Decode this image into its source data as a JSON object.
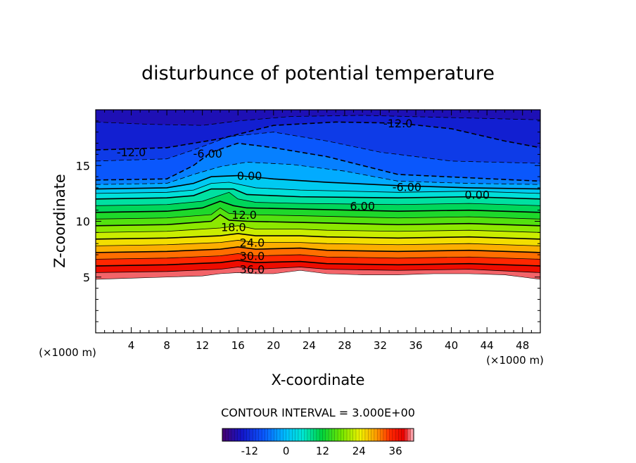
{
  "chart_data": {
    "type": "contour",
    "title": "disturbunce of potential temperature",
    "xlabel": "X-coordinate",
    "ylabel": "Z-coordinate",
    "x_unit": "(×1000 m)",
    "y_unit": "(×1000 m)",
    "xlim": [
      0,
      50
    ],
    "ylim": [
      0,
      20
    ],
    "x_ticks": [
      4,
      8,
      12,
      16,
      20,
      24,
      28,
      32,
      36,
      40,
      44,
      48
    ],
    "y_ticks": [
      5,
      10,
      15
    ],
    "contour_interval_label": "CONTOUR INTERVAL = 3.000E+00",
    "colorbar": {
      "range": [
        -21,
        42
      ],
      "ticks": [
        -12,
        0,
        12,
        24,
        36
      ]
    },
    "contour_labels": [
      {
        "text": "-12.0",
        "x": 4.0,
        "y": 16.2
      },
      {
        "text": "-12.0",
        "x": 34.0,
        "y": 18.8
      },
      {
        "text": "-6.00",
        "x": 12.6,
        "y": 16.1
      },
      {
        "text": "0.00",
        "x": 17.3,
        "y": 14.1
      },
      {
        "text": "-6.00",
        "x": 35.0,
        "y": 13.1
      },
      {
        "text": "0.00",
        "x": 42.9,
        "y": 12.4
      },
      {
        "text": "6.00",
        "x": 30.0,
        "y": 11.4
      },
      {
        "text": "12.0",
        "x": 16.7,
        "y": 10.6
      },
      {
        "text": "18.0",
        "x": 15.5,
        "y": 9.5
      },
      {
        "text": "24.0",
        "x": 17.6,
        "y": 8.1
      },
      {
        "text": "30.0",
        "x": 17.6,
        "y": 6.9
      },
      {
        "text": "36.0",
        "x": 17.6,
        "y": 5.7
      }
    ],
    "terrain_top": [
      [
        0,
        4.8
      ],
      [
        4,
        4.9
      ],
      [
        8,
        5.0
      ],
      [
        12,
        5.1
      ],
      [
        14,
        5.3
      ],
      [
        16,
        5.4
      ],
      [
        18,
        5.3
      ],
      [
        20,
        5.3
      ],
      [
        23,
        5.6
      ],
      [
        26,
        5.3
      ],
      [
        30,
        5.2
      ],
      [
        34,
        5.2
      ],
      [
        38,
        5.3
      ],
      [
        42,
        5.3
      ],
      [
        46,
        5.2
      ],
      [
        48,
        5.0
      ],
      [
        50,
        4.8
      ]
    ],
    "contours": [
      {
        "value": 39,
        "points": [
          [
            0,
            5.4
          ],
          [
            8,
            5.5
          ],
          [
            14,
            5.7
          ],
          [
            16,
            5.9
          ],
          [
            18,
            5.7
          ],
          [
            23,
            5.9
          ],
          [
            26,
            5.7
          ],
          [
            34,
            5.6
          ],
          [
            42,
            5.7
          ],
          [
            50,
            5.4
          ]
        ]
      },
      {
        "value": 36,
        "points": [
          [
            0,
            6.0
          ],
          [
            8,
            6.1
          ],
          [
            14,
            6.3
          ],
          [
            16,
            6.5
          ],
          [
            18,
            6.3
          ],
          [
            23,
            6.4
          ],
          [
            26,
            6.2
          ],
          [
            34,
            6.1
          ],
          [
            42,
            6.2
          ],
          [
            50,
            6.0
          ]
        ]
      },
      {
        "value": 33,
        "points": [
          [
            0,
            6.6
          ],
          [
            8,
            6.7
          ],
          [
            14,
            6.9
          ],
          [
            16,
            7.1
          ],
          [
            18,
            6.9
          ],
          [
            23,
            7.0
          ],
          [
            26,
            6.8
          ],
          [
            34,
            6.7
          ],
          [
            42,
            6.8
          ],
          [
            50,
            6.6
          ]
        ]
      },
      {
        "value": 30,
        "points": [
          [
            0,
            7.2
          ],
          [
            8,
            7.3
          ],
          [
            14,
            7.5
          ],
          [
            16,
            7.7
          ],
          [
            18,
            7.5
          ],
          [
            23,
            7.6
          ],
          [
            26,
            7.4
          ],
          [
            34,
            7.3
          ],
          [
            42,
            7.4
          ],
          [
            50,
            7.2
          ]
        ]
      },
      {
        "value": 27,
        "points": [
          [
            0,
            7.8
          ],
          [
            8,
            7.9
          ],
          [
            14,
            8.1
          ],
          [
            16,
            8.3
          ],
          [
            18,
            8.1
          ],
          [
            23,
            8.1
          ],
          [
            26,
            8.0
          ],
          [
            34,
            7.9
          ],
          [
            42,
            8.0
          ],
          [
            50,
            7.8
          ]
        ]
      },
      {
        "value": 24,
        "points": [
          [
            0,
            8.4
          ],
          [
            8,
            8.5
          ],
          [
            14,
            8.7
          ],
          [
            16,
            8.9
          ],
          [
            18,
            8.7
          ],
          [
            23,
            8.7
          ],
          [
            26,
            8.6
          ],
          [
            34,
            8.5
          ],
          [
            42,
            8.6
          ],
          [
            50,
            8.4
          ]
        ]
      },
      {
        "value": 21,
        "points": [
          [
            0,
            9.0
          ],
          [
            8,
            9.1
          ],
          [
            14,
            9.4
          ],
          [
            16,
            9.6
          ],
          [
            18,
            9.3
          ],
          [
            23,
            9.3
          ],
          [
            26,
            9.2
          ],
          [
            34,
            9.1
          ],
          [
            42,
            9.2
          ],
          [
            50,
            9.0
          ]
        ]
      },
      {
        "value": 18,
        "points": [
          [
            0,
            9.6
          ],
          [
            8,
            9.7
          ],
          [
            13,
            10.0
          ],
          [
            14,
            10.6
          ],
          [
            15,
            10.1
          ],
          [
            17,
            10.0
          ],
          [
            23,
            9.9
          ],
          [
            34,
            9.7
          ],
          [
            42,
            9.8
          ],
          [
            50,
            9.6
          ]
        ]
      },
      {
        "value": 15,
        "points": [
          [
            0,
            10.2
          ],
          [
            8,
            10.3
          ],
          [
            13,
            10.6
          ],
          [
            14,
            11.2
          ],
          [
            15,
            10.7
          ],
          [
            17,
            10.6
          ],
          [
            23,
            10.5
          ],
          [
            34,
            10.3
          ],
          [
            42,
            10.4
          ],
          [
            50,
            10.2
          ]
        ]
      },
      {
        "value": 12,
        "points": [
          [
            0,
            10.8
          ],
          [
            8,
            10.9
          ],
          [
            12,
            11.2
          ],
          [
            14,
            11.8
          ],
          [
            15.5,
            11.4
          ],
          [
            17,
            11.2
          ],
          [
            23,
            11.1
          ],
          [
            34,
            10.9
          ],
          [
            42,
            11.0
          ],
          [
            50,
            10.8
          ]
        ]
      },
      {
        "value": 9,
        "points": [
          [
            0,
            11.4
          ],
          [
            8,
            11.5
          ],
          [
            12,
            11.8
          ],
          [
            15,
            12.6
          ],
          [
            16,
            12.0
          ],
          [
            18,
            11.7
          ],
          [
            23,
            11.6
          ],
          [
            34,
            11.5
          ],
          [
            42,
            11.6
          ],
          [
            50,
            11.4
          ]
        ]
      },
      {
        "value": 6,
        "points": [
          [
            0,
            12.0
          ],
          [
            8,
            12.1
          ],
          [
            11,
            12.3
          ],
          [
            13,
            12.9
          ],
          [
            15.5,
            12.9
          ],
          [
            17,
            12.4
          ],
          [
            23,
            12.2
          ],
          [
            34,
            12.1
          ],
          [
            42,
            12.2
          ],
          [
            50,
            12.0
          ]
        ]
      },
      {
        "value": 3,
        "points": [
          [
            0,
            12.5
          ],
          [
            8,
            12.6
          ],
          [
            11,
            12.8
          ],
          [
            13,
            13.4
          ],
          [
            15,
            13.5
          ],
          [
            18,
            13.0
          ],
          [
            23,
            12.8
          ],
          [
            34,
            12.6
          ],
          [
            42,
            12.7
          ],
          [
            50,
            12.5
          ]
        ]
      },
      {
        "value": 0,
        "points": [
          [
            0,
            12.9
          ],
          [
            8,
            13.0
          ],
          [
            11,
            13.4
          ],
          [
            13,
            14.0
          ],
          [
            16,
            14.1
          ],
          [
            20,
            13.8
          ],
          [
            26,
            13.5
          ],
          [
            34,
            13.2
          ],
          [
            42,
            13.0
          ],
          [
            50,
            12.9
          ]
        ]
      },
      {
        "value": -3,
        "points": [
          [
            0,
            13.3
          ],
          [
            8,
            13.4
          ],
          [
            11,
            14.2
          ],
          [
            14,
            14.9
          ],
          [
            17,
            15.3
          ],
          [
            22,
            15.1
          ],
          [
            28,
            14.5
          ],
          [
            34,
            13.6
          ],
          [
            42,
            13.4
          ],
          [
            50,
            13.3
          ]
        ]
      },
      {
        "value": -6,
        "points": [
          [
            0,
            13.7
          ],
          [
            8,
            13.8
          ],
          [
            11,
            15.0
          ],
          [
            13,
            16.2
          ],
          [
            16,
            17.0
          ],
          [
            20,
            16.6
          ],
          [
            26,
            15.8
          ],
          [
            34,
            14.2
          ],
          [
            42,
            13.9
          ],
          [
            50,
            13.6
          ]
        ]
      },
      {
        "value": -9,
        "points": [
          [
            0,
            15.4
          ],
          [
            8,
            15.6
          ],
          [
            11,
            16.4
          ],
          [
            15,
            17.6
          ],
          [
            20,
            18.0
          ],
          [
            26,
            17.2
          ],
          [
            32,
            16.2
          ],
          [
            40,
            15.4
          ],
          [
            50,
            15.2
          ]
        ]
      },
      {
        "value": -12,
        "points": [
          [
            0,
            16.4
          ],
          [
            8,
            16.6
          ],
          [
            14,
            17.4
          ],
          [
            20,
            18.6
          ],
          [
            27,
            18.9
          ],
          [
            34,
            18.8
          ],
          [
            40,
            18.3
          ],
          [
            46,
            17.2
          ],
          [
            50,
            16.6
          ]
        ]
      },
      {
        "value": -15,
        "points": [
          [
            0,
            18.9
          ],
          [
            6,
            18.7
          ],
          [
            12,
            18.6
          ],
          [
            16,
            19.0
          ],
          [
            22,
            19.4
          ],
          [
            30,
            19.5
          ],
          [
            40,
            19.3
          ],
          [
            50,
            19.1
          ]
        ]
      }
    ]
  }
}
